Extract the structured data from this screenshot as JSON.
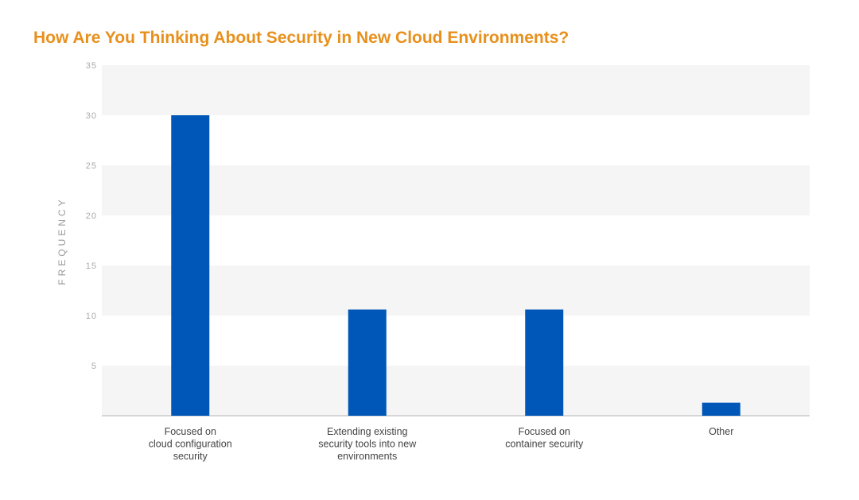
{
  "chart_data": {
    "type": "bar",
    "title": "How Are You Thinking About Security in New Cloud Environments?",
    "xlabel": "",
    "ylabel": "FREQUENCY",
    "ylim": [
      0,
      35
    ],
    "yticks": [
      5,
      10,
      15,
      20,
      25,
      30,
      35
    ],
    "categories": [
      [
        "Focused on",
        "cloud configuration",
        "security"
      ],
      [
        "Extending existing",
        "security tools into new",
        "environments"
      ],
      [
        "Focused on",
        "container security"
      ],
      [
        "Other"
      ]
    ],
    "values": [
      30,
      10.6,
      10.6,
      1.3
    ],
    "bar_color": "#0057b8",
    "band_color": "#f5f5f5",
    "title_color": "#e8901c",
    "grid": true
  }
}
